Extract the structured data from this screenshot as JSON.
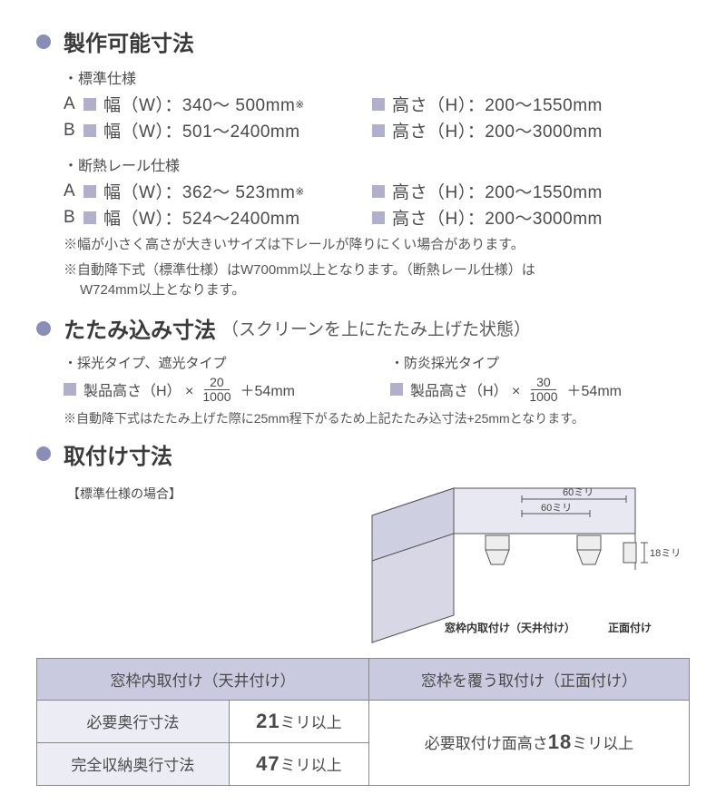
{
  "colors": {
    "bullet": "#8a8db8",
    "square": "#b0b0cc",
    "table_header_bg": "#c9c9e0",
    "table_rowhead_bg": "#ececf4",
    "text": "#4a4a4a",
    "diagram_fill": "#d7d7e6",
    "diagram_stroke": "#555555"
  },
  "section1": {
    "title": "製作可能寸法",
    "sub1": "・標準仕様",
    "rows1": [
      {
        "letter": "A",
        "w": "幅（W）：340～  500mm",
        "sup": "※",
        "h": "高さ（H）：200～1550mm"
      },
      {
        "letter": "B",
        "w": "幅（W）：501～2400mm",
        "sup": "",
        "h": "高さ（H）：200～3000mm"
      }
    ],
    "sub2": "・断熱レール仕様",
    "rows2": [
      {
        "letter": "A",
        "w": "幅（W）：362～  523mm",
        "sup": "※",
        "h": "高さ（H）：200～1550mm"
      },
      {
        "letter": "B",
        "w": "幅（W）：524～2400mm",
        "sup": "",
        "h": "高さ（H）：200～3000mm"
      }
    ],
    "note1": "※幅が小さく高さが大きいサイズは下レールが降りにくい場合があります。",
    "note2a": "※自動降下式（標準仕様）はW700mm以上となります。（断熱レール仕様）は",
    "note2b": "W724mm以上となります。"
  },
  "section2": {
    "title": "たたみ込み寸法",
    "subtitle": "（スクリーンを上にたたみ上げた状態）",
    "col1_label": "・採光タイプ、遮光タイプ",
    "col2_label": "・防炎採光タイプ",
    "formula_prefix": "製品高さ（H） ×",
    "frac1_num": "20",
    "frac1_den": "1000",
    "frac2_num": "30",
    "frac2_den": "1000",
    "formula_suffix": "＋54mm",
    "note": "※自動降下式はたたみ上げた際に25mm程下がるため上記たたみ込寸法+25mmとなります。"
  },
  "section3": {
    "title": "取付け寸法",
    "sub": "【標準仕様の場合】",
    "diagram": {
      "dim_top": "60ミリ",
      "dim_top2": "60ミリ",
      "dim_side": "18ミリ",
      "label_left": "窓枠内取付け（天井付け）",
      "label_right": "正面付け"
    },
    "table": {
      "h1": "窓枠内取付け（天井付け）",
      "h2": "窓枠を覆う取付け（正面付け）",
      "r1_label": "必要奥行寸法",
      "r1_val": "21",
      "r1_unit": "ミリ以上",
      "r2_label": "完全収納奥行寸法",
      "r2_val": "47",
      "r2_unit": "ミリ以上",
      "right_prefix": "必要取付け面高さ",
      "right_val": "18",
      "right_unit": "ミリ以上"
    }
  }
}
